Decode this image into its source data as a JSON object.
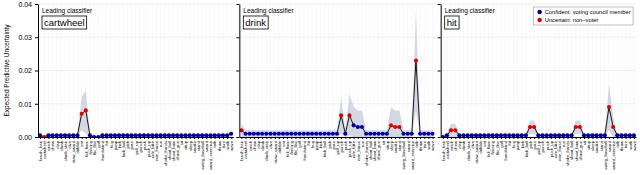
{
  "chart_data": [
    {
      "type": "line",
      "title": "cartwheel",
      "annotations": [
        "Leading classifier"
      ],
      "ylabel": "Expected Predictive Uncertainty",
      "categories": [
        "brush_hair",
        "cartwheel",
        "catch",
        "chew",
        "clap",
        "climb",
        "climb_stair",
        "dive",
        "draw_sword",
        "dribble",
        "eat",
        "fall_floor",
        "fencing",
        "flic_flac",
        "golf",
        "handstand",
        "hit",
        "hug",
        "jump",
        "kick",
        "kick_ball",
        "pick",
        "pour",
        "pull_up",
        "punch",
        "push",
        "push_up",
        "ride_bike",
        "ride_horse",
        "run",
        "shake_hands",
        "shoot_ball",
        "shoot_bow",
        "shoot_gun",
        "sit",
        "situp",
        "sleep",
        "smoke",
        "stand",
        "swing_baseball",
        "sword",
        "sword_exercise",
        "talk",
        "throw",
        "turn",
        "walk",
        "wave"
      ],
      "series": [
        {
          "type": "area",
          "color": "#c0c8d8",
          "lower": [
            0.0,
            0.0,
            0.0,
            0.0,
            0.0,
            0.0,
            0.0,
            0.0,
            0.0,
            0.0,
            0.002,
            0.001,
            0.0,
            0.0,
            0.0,
            0.0,
            0.0,
            0.0,
            0.0,
            0.0,
            0.0,
            0.0,
            0.0,
            0.0,
            0.0,
            0.0,
            0.0,
            0.0,
            0.0,
            0.0,
            0.0,
            0.0,
            0.0,
            0.0,
            0.0,
            0.0,
            0.0,
            0.0,
            0.0,
            0.0,
            0.0,
            0.0,
            0.0,
            0.0,
            0.0,
            0.0,
            0.0
          ],
          "upper": [
            0.001,
            0.0,
            0.001,
            0.001,
            0.001,
            0.001,
            0.001,
            0.001,
            0.001,
            0.001,
            0.012,
            0.014,
            0.001,
            0.0,
            0.0,
            0.001,
            0.001,
            0.001,
            0.001,
            0.001,
            0.001,
            0.001,
            0.001,
            0.001,
            0.001,
            0.001,
            0.001,
            0.001,
            0.001,
            0.001,
            0.001,
            0.001,
            0.001,
            0.001,
            0.001,
            0.001,
            0.001,
            0.001,
            0.001,
            0.001,
            0.001,
            0.001,
            0.001,
            0.001,
            0.001,
            0.001,
            0.002
          ]
        },
        {
          "type": "line",
          "color": "black",
          "values": [
            0.0005,
            0.0,
            0.0005,
            0.0005,
            0.0005,
            0.0005,
            0.0005,
            0.0005,
            0.0005,
            0.0005,
            0.007,
            0.008,
            0.0005,
            0.0,
            0.0,
            0.0005,
            0.0005,
            0.0005,
            0.0005,
            0.0005,
            0.0005,
            0.0005,
            0.0005,
            0.0005,
            0.0005,
            0.0005,
            0.0005,
            0.0005,
            0.0005,
            0.0005,
            0.0005,
            0.0005,
            0.0005,
            0.0005,
            0.0005,
            0.0005,
            0.0005,
            0.0005,
            0.0005,
            0.0005,
            0.0005,
            0.0005,
            0.0005,
            0.0005,
            0.0005,
            0.0005,
            0.001
          ]
        },
        {
          "type": "scatter",
          "marker": "circle",
          "color": "#000099",
          "values": [
            0.0005,
            null,
            0.0005,
            0.0005,
            0.0005,
            0.0005,
            0.0005,
            0.0005,
            0.0005,
            0.0005,
            null,
            null,
            0.0005,
            0.0,
            0.0,
            0.0005,
            0.0005,
            0.0005,
            0.0005,
            0.0005,
            0.0005,
            0.0005,
            0.0005,
            0.0005,
            0.0005,
            0.0005,
            0.0005,
            0.0005,
            0.0005,
            0.0005,
            0.0005,
            0.0005,
            0.0005,
            0.0005,
            0.0005,
            0.0005,
            0.0005,
            0.0005,
            0.0005,
            0.0005,
            0.0005,
            0.0005,
            0.0005,
            0.0005,
            0.0005,
            0.0005,
            0.001
          ]
        },
        {
          "type": "scatter",
          "marker": "circle",
          "color": "#dd0000",
          "values": [
            null,
            0.0,
            null,
            null,
            null,
            null,
            null,
            null,
            null,
            null,
            0.007,
            0.008,
            null,
            null,
            null,
            null,
            null,
            null,
            null,
            null,
            null,
            null,
            null,
            null,
            null,
            null,
            null,
            null,
            null,
            null,
            null,
            null,
            null,
            null,
            null,
            null,
            null,
            null,
            null,
            null,
            null,
            null,
            null,
            null,
            null,
            null,
            null
          ]
        }
      ],
      "ylim": [
        0,
        0.04
      ],
      "yticks": [
        {
          "value": 0.0,
          "label": "0.00"
        },
        0.01,
        0.02,
        0.03,
        0.04
      ],
      "grid": true
    },
    {
      "type": "line",
      "title": "drink",
      "annotations": [
        "Leading classifier"
      ],
      "categories": [
        "brush_hair",
        "cartwheel",
        "catch",
        "chew",
        "clap",
        "climb",
        "climb_stair",
        "dive",
        "draw_sword",
        "dribble",
        "eat",
        "fall_floor",
        "fencing",
        "flic_flac",
        "golf",
        "handstand",
        "hit",
        "hug",
        "jump",
        "kick",
        "kick_ball",
        "pick",
        "pour",
        "pull_up",
        "punch",
        "push",
        "push_up",
        "ride_bike",
        "ride_horse",
        "run",
        "shake_hands",
        "shoot_ball",
        "shoot_bow",
        "shoot_gun",
        "sit",
        "situp",
        "sleep",
        "smoke",
        "stand",
        "swing_baseball",
        "sword",
        "sword_exercise",
        "talk",
        "throw",
        "turn",
        "walk",
        "wave"
      ],
      "series": [
        {
          "type": "area",
          "color": "#c0c8d8",
          "lower": [
            0.0,
            0.0,
            0.0,
            0.0,
            0.0,
            0.0,
            0.0,
            0.0,
            0.0,
            0.0,
            0.0,
            0.0,
            0.0,
            0.0,
            0.0,
            0.0,
            0.0,
            0.0,
            0.0,
            0.0,
            0.0,
            0.0,
            0.0,
            0.0,
            0.001,
            0.0,
            0.0005,
            0.0,
            0.0,
            0.0,
            0.0,
            0.0,
            0.0,
            0.0,
            0.0,
            0.0,
            0.0,
            0.0,
            0.0,
            0.0,
            0.0,
            0.0,
            0.008,
            0.0,
            0.0,
            0.0,
            0.0
          ],
          "upper": [
            0.004,
            0.002,
            0.002,
            0.002,
            0.002,
            0.002,
            0.002,
            0.002,
            0.002,
            0.002,
            0.002,
            0.002,
            0.002,
            0.002,
            0.002,
            0.002,
            0.002,
            0.002,
            0.002,
            0.002,
            0.002,
            0.002,
            0.002,
            0.002,
            0.012,
            0.002,
            0.013,
            0.009,
            0.008,
            0.008,
            0.002,
            0.002,
            0.002,
            0.002,
            0.002,
            0.002,
            0.009,
            0.008,
            0.008,
            0.002,
            0.002,
            0.002,
            0.038,
            0.002,
            0.002,
            0.002,
            0.002
          ]
        },
        {
          "type": "line",
          "color": "black",
          "values": [
            0.002,
            0.001,
            0.001,
            0.001,
            0.001,
            0.001,
            0.001,
            0.001,
            0.001,
            0.001,
            0.001,
            0.001,
            0.001,
            0.001,
            0.001,
            0.001,
            0.001,
            0.001,
            0.001,
            0.001,
            0.001,
            0.001,
            0.001,
            0.001,
            0.0065,
            0.001,
            0.0065,
            0.0035,
            0.003,
            0.003,
            0.001,
            0.001,
            0.001,
            0.001,
            0.001,
            0.001,
            0.0035,
            0.003,
            0.003,
            0.001,
            0.001,
            0.001,
            0.023,
            0.001,
            0.001,
            0.001,
            0.001
          ]
        },
        {
          "type": "scatter",
          "marker": "circle",
          "color": "#000099",
          "values": [
            null,
            0.001,
            0.001,
            0.001,
            0.001,
            0.001,
            0.001,
            0.001,
            0.001,
            0.001,
            0.001,
            0.001,
            0.001,
            0.001,
            0.001,
            0.001,
            0.001,
            0.001,
            0.001,
            0.001,
            0.001,
            0.001,
            0.001,
            0.001,
            null,
            0.001,
            null,
            0.0035,
            0.003,
            0.003,
            0.001,
            0.001,
            0.001,
            0.001,
            0.001,
            0.001,
            null,
            null,
            null,
            0.001,
            0.001,
            0.001,
            null,
            0.001,
            0.001,
            0.001,
            0.001
          ]
        },
        {
          "type": "scatter",
          "marker": "circle",
          "color": "#dd0000",
          "values": [
            0.002,
            null,
            null,
            null,
            null,
            null,
            null,
            null,
            null,
            null,
            null,
            null,
            null,
            null,
            null,
            null,
            null,
            null,
            null,
            null,
            null,
            null,
            null,
            null,
            0.0065,
            null,
            0.0065,
            null,
            null,
            null,
            null,
            null,
            null,
            null,
            null,
            null,
            0.0035,
            0.003,
            0.003,
            null,
            null,
            null,
            0.023,
            null,
            null,
            null,
            null
          ]
        }
      ],
      "ylim": [
        0,
        0.04
      ],
      "yticks": [
        0.0,
        0.01,
        0.02,
        0.03,
        0.04
      ],
      "grid": true,
      "tick_labels": "x"
    },
    {
      "type": "line",
      "title": "hit",
      "annotations": [
        "Leading classifier"
      ],
      "categories": [
        "brush_hair",
        "cartwheel",
        "catch",
        "chew",
        "clap",
        "climb",
        "climb_stair",
        "dive",
        "draw_sword",
        "dribble",
        "eat",
        "fall_floor",
        "fencing",
        "flic_flac",
        "golf",
        "handstand",
        "hit",
        "hug",
        "jump",
        "kick",
        "kick_ball",
        "pick",
        "pour",
        "pull_up",
        "punch",
        "push",
        "push_up",
        "ride_bike",
        "ride_horse",
        "run",
        "shake_hands",
        "shoot_ball",
        "shoot_bow",
        "shoot_gun",
        "sit",
        "situp",
        "sleep",
        "smoke",
        "stand",
        "swing_baseball",
        "sword",
        "sword_exercise",
        "talk",
        "throw",
        "turn",
        "walk",
        "wave"
      ],
      "series": [
        {
          "type": "area",
          "color": "#c0c8d8",
          "lower": [
            0.0,
            0.0,
            0.0,
            0.0,
            0.0,
            0.0,
            0.0,
            0.0,
            0.0,
            0.0,
            0.0,
            0.0,
            0.0,
            0.0,
            0.0,
            0.0,
            0.0,
            0.0,
            0.0,
            0.0,
            0.0,
            0.001,
            0.001,
            0.0,
            0.0,
            0.0,
            0.0,
            0.0,
            0.0,
            0.0,
            0.0,
            0.0,
            0.001,
            0.001,
            0.0,
            0.0,
            0.0,
            0.0,
            0.0,
            0.0,
            0.002,
            0.0,
            0.0,
            0.0,
            0.0,
            0.0,
            0.0
          ],
          "upper": [
            0.001,
            0.001,
            0.004,
            0.004,
            0.001,
            0.001,
            0.001,
            0.001,
            0.001,
            0.001,
            0.001,
            0.001,
            0.001,
            0.001,
            0.001,
            0.001,
            0.001,
            0.001,
            0.001,
            0.001,
            0.001,
            0.005,
            0.005,
            0.001,
            0.001,
            0.001,
            0.001,
            0.001,
            0.001,
            0.001,
            0.001,
            0.001,
            0.005,
            0.005,
            0.001,
            0.001,
            0.001,
            0.001,
            0.001,
            0.001,
            0.016,
            0.006,
            0.001,
            0.001,
            0.001,
            0.001,
            0.001
          ]
        },
        {
          "type": "line",
          "color": "black",
          "values": [
            0.0,
            0.0005,
            0.002,
            0.002,
            0.0005,
            0.0005,
            0.0005,
            0.0005,
            0.0005,
            0.0005,
            0.0005,
            0.0005,
            0.0005,
            0.0005,
            0.0005,
            0.0005,
            0.0005,
            0.0005,
            0.0005,
            0.0005,
            0.0005,
            0.003,
            0.003,
            0.0005,
            0.0005,
            0.0005,
            0.0005,
            0.0005,
            0.0005,
            0.0005,
            0.0005,
            0.0005,
            0.003,
            0.003,
            0.0005,
            0.0005,
            0.0005,
            0.0005,
            0.0005,
            0.0005,
            0.009,
            0.003,
            0.0005,
            0.0005,
            0.0005,
            0.0005,
            0.0005
          ]
        },
        {
          "type": "scatter",
          "marker": "circle",
          "color": "#000099",
          "name": "Confident: voting council member",
          "values": [
            0.0,
            0.0005,
            null,
            null,
            0.0005,
            0.0005,
            0.0005,
            0.0005,
            0.0005,
            0.0005,
            0.0005,
            0.0005,
            0.0005,
            0.0005,
            0.0005,
            0.0005,
            0.0005,
            0.0005,
            0.0005,
            0.0005,
            0.0005,
            null,
            null,
            0.0005,
            0.0005,
            0.0005,
            0.0005,
            0.0005,
            0.0005,
            0.0005,
            0.0005,
            0.0005,
            null,
            null,
            0.0005,
            0.0005,
            0.0005,
            0.0005,
            0.0005,
            0.0005,
            null,
            null,
            0.0005,
            0.0005,
            0.0005,
            0.0005,
            0.0005
          ]
        },
        {
          "type": "scatter",
          "marker": "circle",
          "color": "#dd0000",
          "name": "Uncertain: non–voter",
          "values": [
            null,
            null,
            0.002,
            0.002,
            null,
            null,
            null,
            null,
            null,
            null,
            null,
            null,
            null,
            null,
            null,
            null,
            null,
            null,
            null,
            null,
            null,
            0.003,
            0.003,
            null,
            null,
            null,
            null,
            null,
            null,
            null,
            null,
            null,
            0.003,
            0.003,
            null,
            null,
            null,
            null,
            null,
            null,
            0.009,
            0.003,
            null,
            null,
            null,
            null,
            null
          ]
        }
      ],
      "ylim": [
        0,
        0.04
      ],
      "yticks": [
        0.0,
        0.01,
        0.02,
        0.03,
        0.04
      ],
      "grid": true,
      "tick_labels": "x",
      "legend": "upper right"
    }
  ]
}
